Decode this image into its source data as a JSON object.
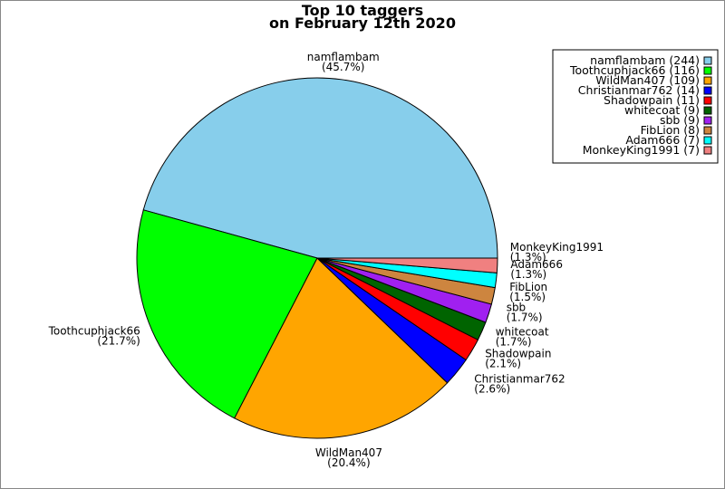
{
  "chart_data": {
    "type": "pie",
    "title": [
      "Top 10 taggers",
      "on February 12th 2020"
    ],
    "legend_position": "top-right",
    "slices": [
      {
        "name": "namflambam",
        "value": 244,
        "percent_label": "(45.7%)",
        "legend_label": "namflambam (244)",
        "color": "#87ceeb"
      },
      {
        "name": "Toothcuphjack66",
        "value": 116,
        "percent_label": "(21.7%)",
        "legend_label": "Toothcuphjack66 (116)",
        "color": "#00ff00"
      },
      {
        "name": "WildMan407",
        "value": 109,
        "percent_label": "(20.4%)",
        "legend_label": "WildMan407 (109)",
        "color": "#ffa500"
      },
      {
        "name": "Christianmar762",
        "value": 14,
        "percent_label": "(2.6%)",
        "legend_label": "Christianmar762 (14)",
        "color": "#0000ff"
      },
      {
        "name": "Shadowpain",
        "value": 11,
        "percent_label": "(2.1%)",
        "legend_label": "Shadowpain (11)",
        "color": "#ff0000"
      },
      {
        "name": "whitecoat",
        "value": 9,
        "percent_label": "(1.7%)",
        "legend_label": "whitecoat (9)",
        "color": "#006400"
      },
      {
        "name": "sbb",
        "value": 9,
        "percent_label": "(1.7%)",
        "legend_label": "sbb (9)",
        "color": "#a020f0"
      },
      {
        "name": "FibLion",
        "value": 8,
        "percent_label": "(1.5%)",
        "legend_label": "FibLion (8)",
        "color": "#cd853f"
      },
      {
        "name": "Adam666",
        "value": 7,
        "percent_label": "(1.3%)",
        "legend_label": "Adam666 (7)",
        "color": "#00ffff"
      },
      {
        "name": "MonkeyKing1991",
        "value": 7,
        "percent_label": "(1.3%)",
        "legend_label": "MonkeyKing1991 (7)",
        "color": "#f08080"
      }
    ]
  }
}
